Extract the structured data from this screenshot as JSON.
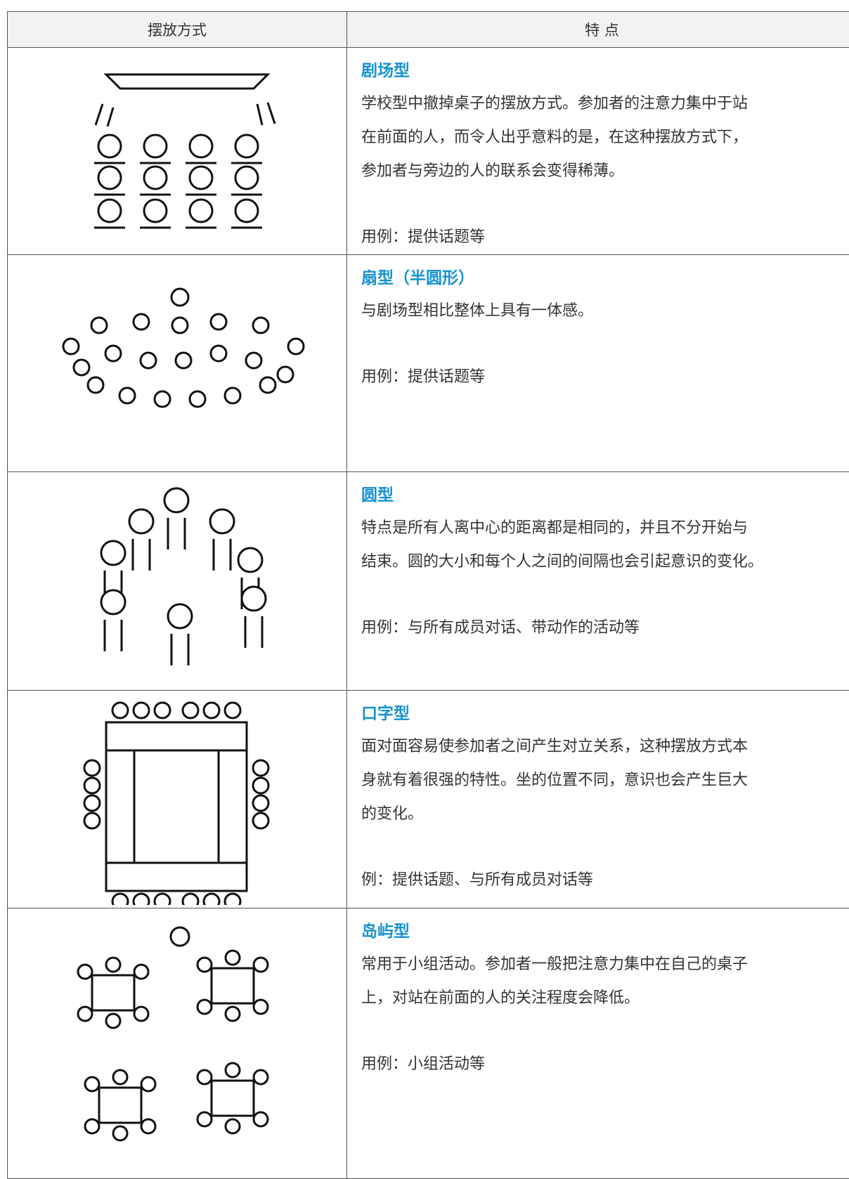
{
  "table": {
    "header": [
      "摆放方式",
      "特 点"
    ],
    "rows": [
      {
        "title": "剧场型",
        "lines": [
          "学校型中撤掉桌子的摆放方式。参加者的注意力集中于站",
          "在前面的人，而令人出乎意料的是，在这种摆放方式下，",
          "参加者与旁边的人的联系会变得稀薄。"
        ],
        "example": "用例：提供话题等"
      },
      {
        "title": "扇型（半圆形）",
        "lines": [
          "与剧场型相比整体上具有一体感。"
        ],
        "example": "用例：提供话题等"
      },
      {
        "title": "圆型",
        "lines": [
          "特点是所有人离中心的距离都是相同的，并且不分开始与",
          "结束。圆的大小和每个人之间的间隔也会引起意识的变化。"
        ],
        "example": "用例：与所有成员对话、带动作的活动等"
      },
      {
        "title": "口字型",
        "lines": [
          "面对面容易使参加者之间产生对立关系，这种摆放方式本",
          "身就有着很强的特性。坐的位置不同，意识也会产生巨大",
          "的变化。"
        ],
        "example": "例：提供话题、与所有成员对话等"
      },
      {
        "title": "岛屿型",
        "lines": [
          "常用于小组活动。参加者一般把注意力集中在自己的桌子",
          "上，对站在前面的人的关注程度会降低。"
        ],
        "example": "用例：小组活动等"
      }
    ]
  }
}
